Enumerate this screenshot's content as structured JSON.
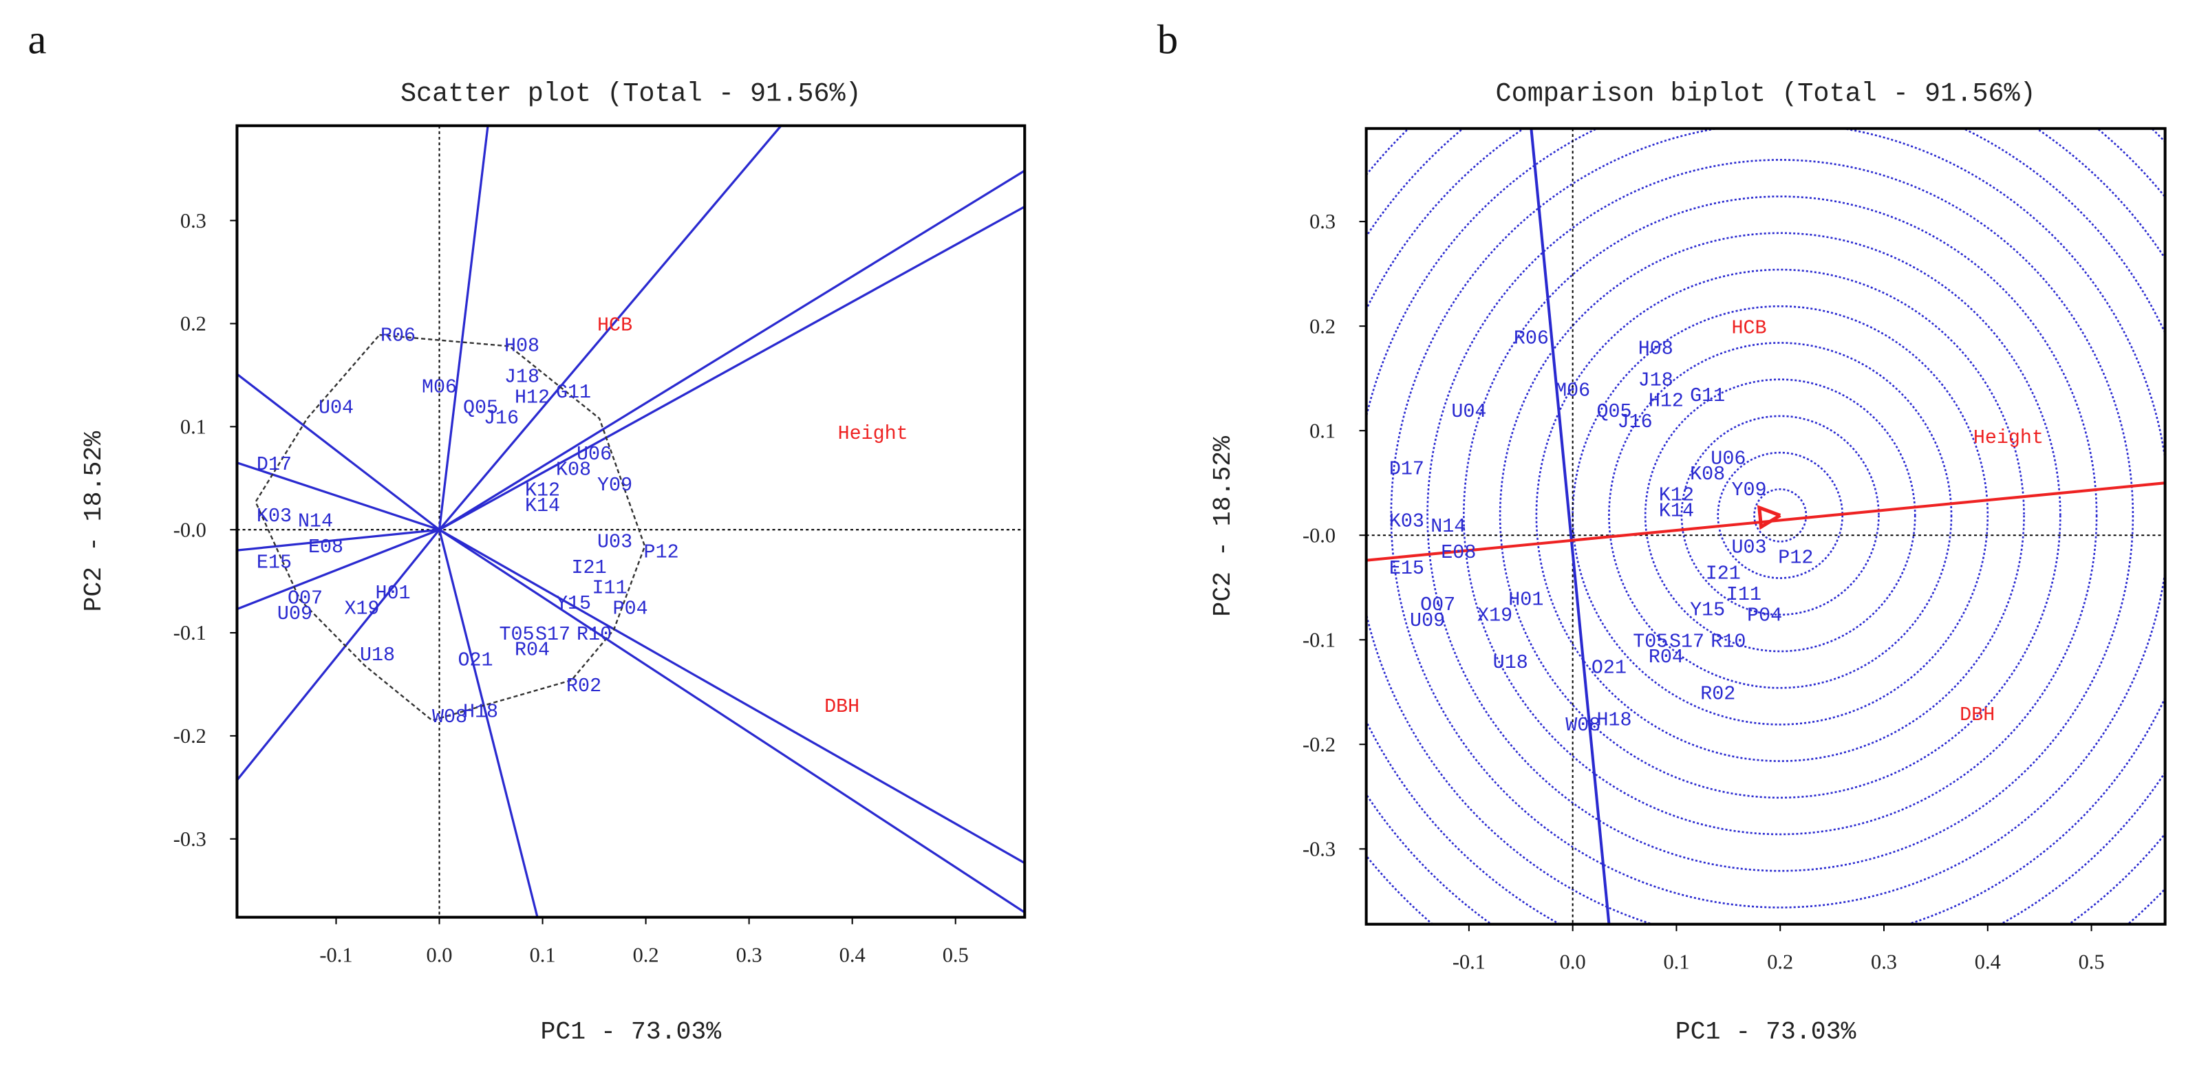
{
  "chart_data": [
    {
      "type": "scatter",
      "panel": "a",
      "title": "Scatter plot (Total - 91.56%)",
      "xlabel": "PC1 - 73.03%",
      "ylabel": "PC2 - 18.52%",
      "xlim": [
        -0.196,
        0.567
      ],
      "ylim": [
        -0.376,
        0.392
      ],
      "xticks": [
        -0.1,
        {
          "value": 0,
          "label": "0.0"
        },
        0.1,
        0.2,
        0.3,
        0.4,
        0.5
      ],
      "yticks": [
        -0.3,
        -0.2,
        -0.1,
        {
          "value": 0,
          "label": "-0.0"
        },
        0.1,
        0.2,
        0.3
      ],
      "series": [
        {
          "color": "#2a2ad0",
          "labels": [
            "R06",
            "H08",
            "J18",
            "G11",
            "H12",
            "M06",
            "U04",
            "D17",
            "K03",
            "N14",
            "E15",
            "E08",
            "O07",
            "U09",
            "X19",
            "U18",
            "W08",
            "H18",
            "R02",
            "R04",
            "R10",
            "P04",
            "I11",
            "Y15",
            "T05",
            "S17",
            "I21",
            "P12",
            "U03",
            "Y09",
            "U06",
            "K08",
            "K12",
            "K14",
            "O21",
            "H01",
            "Q05",
            "J16"
          ],
          "x": [
            -0.04,
            0.08,
            0.08,
            0.13,
            0.09,
            0.0,
            -0.1,
            -0.16,
            -0.16,
            -0.12,
            -0.16,
            -0.11,
            -0.13,
            -0.14,
            -0.075,
            -0.06,
            0.01,
            0.04,
            0.14,
            0.09,
            0.15,
            0.185,
            0.165,
            0.13,
            0.075,
            0.11,
            0.145,
            0.215,
            0.17,
            0.17,
            0.15,
            0.13,
            0.1,
            0.1,
            0.035,
            -0.045,
            0.04,
            0.06
          ],
          "y": [
            0.19,
            0.18,
            0.15,
            0.135,
            0.13,
            0.14,
            0.12,
            0.065,
            0.015,
            0.01,
            -0.03,
            -0.015,
            -0.065,
            -0.08,
            -0.075,
            -0.12,
            -0.18,
            -0.175,
            -0.15,
            -0.115,
            -0.1,
            -0.075,
            -0.055,
            -0.07,
            -0.1,
            -0.1,
            -0.035,
            -0.02,
            -0.01,
            0.045,
            0.075,
            0.06,
            0.04,
            0.025,
            -0.125,
            -0.06,
            0.12,
            0.11
          ]
        },
        {
          "color": "#ee2222",
          "labels": [
            "HCB",
            "Height",
            "DBH"
          ],
          "x": [
            0.17,
            0.42,
            0.39
          ],
          "y": [
            0.2,
            0.095,
            -0.17
          ]
        }
      ],
      "hull": {
        "x": [
          -0.058,
          0.068,
          0.155,
          0.199,
          0.169,
          0.128,
          -0.007,
          -0.072,
          -0.135,
          -0.178,
          -0.128
        ],
        "y": [
          0.189,
          0.178,
          0.108,
          -0.016,
          -0.097,
          -0.146,
          -0.185,
          -0.132,
          -0.068,
          0.027,
          0.108
        ]
      },
      "rays": {
        "x": [
          0.047,
          0.331,
          0.568,
          0.568,
          0.568,
          0.568,
          0.095,
          -0.196,
          -0.196,
          -0.196,
          -0.196,
          -0.196
        ],
        "y": [
          0.392,
          0.392,
          0.349,
          0.314,
          -0.324,
          -0.372,
          -0.376,
          0.151,
          0.065,
          -0.02,
          -0.077,
          -0.243
        ]
      }
    },
    {
      "type": "scatter",
      "panel": "b",
      "title": "Comparison biplot (Total - 91.56%)",
      "xlabel": "PC1 - 73.03%",
      "ylabel": "PC2 - 18.52%",
      "xlim": [
        -0.199,
        0.571
      ],
      "ylim": [
        -0.372,
        0.389
      ],
      "xticks": [
        -0.1,
        {
          "value": 0,
          "label": "0.0"
        },
        0.1,
        0.2,
        0.3,
        0.4,
        0.5
      ],
      "yticks": [
        -0.3,
        -0.2,
        -0.1,
        {
          "value": 0,
          "label": "-0.0"
        },
        0.1,
        0.2,
        0.3
      ],
      "series": [
        {
          "color": "#2a2ad0",
          "labels": [
            "R06",
            "H08",
            "J18",
            "G11",
            "H12",
            "M06",
            "U04",
            "D17",
            "K03",
            "N14",
            "E15",
            "E08",
            "O07",
            "U09",
            "X19",
            "U18",
            "W08",
            "H18",
            "R02",
            "R04",
            "R10",
            "P04",
            "I11",
            "Y15",
            "T05",
            "S17",
            "I21",
            "P12",
            "U03",
            "Y09",
            "U06",
            "K08",
            "K12",
            "K14",
            "O21",
            "H01",
            "Q05",
            "J16"
          ],
          "x": [
            -0.04,
            0.08,
            0.08,
            0.13,
            0.09,
            0.0,
            -0.1,
            -0.16,
            -0.16,
            -0.12,
            -0.16,
            -0.11,
            -0.13,
            -0.14,
            -0.075,
            -0.06,
            0.01,
            0.04,
            0.14,
            0.09,
            0.15,
            0.185,
            0.165,
            0.13,
            0.075,
            0.11,
            0.145,
            0.215,
            0.17,
            0.17,
            0.15,
            0.13,
            0.1,
            0.1,
            0.035,
            -0.045,
            0.04,
            0.06
          ],
          "y": [
            0.19,
            0.18,
            0.15,
            0.135,
            0.13,
            0.14,
            0.12,
            0.065,
            0.015,
            0.01,
            -0.03,
            -0.015,
            -0.065,
            -0.08,
            -0.075,
            -0.12,
            -0.18,
            -0.175,
            -0.15,
            -0.115,
            -0.1,
            -0.075,
            -0.055,
            -0.07,
            -0.1,
            -0.1,
            -0.035,
            -0.02,
            -0.01,
            0.045,
            0.075,
            0.06,
            0.04,
            0.025,
            -0.125,
            -0.06,
            0.12,
            0.11
          ]
        },
        {
          "color": "#ee2222",
          "labels": [
            "HCB",
            "Height",
            "DBH"
          ],
          "x": [
            0.17,
            0.42,
            0.39
          ],
          "y": [
            0.2,
            0.095,
            -0.17
          ]
        }
      ],
      "circle_center": [
        0.2,
        0.019
      ],
      "circle_radii": [
        0.025,
        0.06,
        0.095,
        0.13,
        0.165,
        0.2,
        0.235,
        0.27,
        0.305,
        0.34,
        0.375,
        0.41,
        0.445,
        0.48,
        0.515
      ],
      "mean_axis": {
        "x": [
          -0.199,
          0.571
        ],
        "y": [
          -0.024,
          0.05
        ]
      },
      "perpendicular": {
        "x": [
          -0.04,
          0.035
        ],
        "y": [
          0.389,
          -0.372
        ]
      }
    }
  ]
}
